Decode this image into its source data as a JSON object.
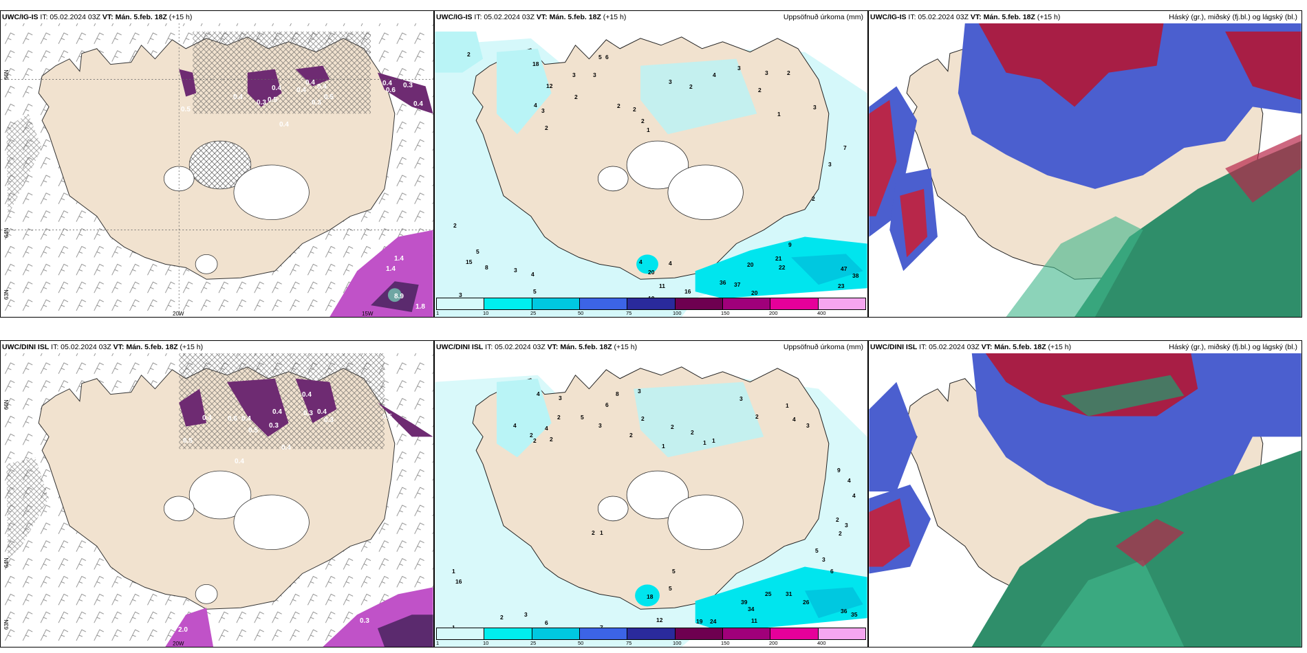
{
  "panels": [
    {
      "id": "igis-wind",
      "source": "UWC/IG-IS",
      "it": "IT: 05.02.2024 03Z",
      "vt_label": "VT:",
      "vt": "Mán. 5.feb. 18Z",
      "lead": "(+15 h)",
      "right_title": "",
      "lat_labels": [
        "66N",
        "64N",
        "63N"
      ],
      "lon_labels": [
        "20W",
        "15W"
      ],
      "values": [
        "0.5",
        "0.4",
        "0.3",
        "0.4",
        "0.5",
        "0.4",
        "0.3",
        "0.4",
        "0.4",
        "0.5",
        "0.4",
        "0.6",
        "0.3",
        "0.4",
        "0.4",
        "1.4",
        "1.4",
        "8.9",
        "1.8"
      ]
    },
    {
      "id": "igis-precip",
      "source": "UWC/IG-IS",
      "it": "IT: 05.02.2024 03Z",
      "vt_label": "VT:",
      "vt": "Mán. 5.feb. 18Z",
      "lead": "(+15 h)",
      "right_title": "Uppsöfnuð úrkoma (mm)",
      "values": [
        "2",
        "5",
        "6",
        "3",
        "4",
        "3",
        "2",
        "3",
        "2",
        "12",
        "18",
        "2",
        "2",
        "2",
        "1",
        "3",
        "2",
        "3",
        "4",
        "3",
        "2",
        "2",
        "1",
        "3",
        "7",
        "3",
        "2",
        "2",
        "5",
        "15",
        "8",
        "3",
        "4",
        "3",
        "5",
        "9",
        "21",
        "22",
        "20",
        "47",
        "38",
        "36",
        "37",
        "23",
        "20",
        "16",
        "20",
        "4",
        "4",
        "11",
        "10"
      ],
      "legend": [
        "1",
        "10",
        "25",
        "50",
        "75",
        "100",
        "150",
        "200",
        "400"
      ]
    },
    {
      "id": "igis-cloud",
      "source": "UWC/IG-IS",
      "it": "IT: 05.02.2024 03Z",
      "vt_label": "VT:",
      "vt": "Mán. 5.feb. 18Z",
      "lead": "(+15 h)",
      "right_title": "Háský (gr.), miðský (fj.bl.) og lágský (bl.)"
    },
    {
      "id": "dini-wind",
      "source": "UWC/DINI ISL",
      "it": "IT: 05.02.2024 03Z",
      "vt_label": "VT:",
      "vt": "Mán. 5.feb. 18Z",
      "lead": "(+15 h)",
      "right_title": "",
      "lat_labels": [
        "66N",
        "64N",
        "63N"
      ],
      "lon_labels": [
        "20W"
      ],
      "values": [
        "0.5",
        "0.4",
        "0.6",
        "0.4",
        "0.3",
        "0.4",
        "0.5",
        "0.4",
        "0.3",
        "0.4",
        "0.3",
        "0.4",
        "0.5",
        "0.4",
        "2.0",
        "0.3"
      ]
    },
    {
      "id": "dini-precip",
      "source": "UWC/DINI ISL",
      "it": "IT: 05.02.2024 03Z",
      "vt_label": "VT:",
      "vt": "Mán. 5.feb. 18Z",
      "lead": "(+15 h)",
      "right_title": "Uppsöfnuð úrkoma (mm)",
      "values": [
        "4",
        "4",
        "2",
        "4",
        "2",
        "2",
        "3",
        "2",
        "5",
        "6",
        "3",
        "8",
        "3",
        "2",
        "2",
        "1",
        "2",
        "1",
        "2",
        "1",
        "3",
        "1",
        "4",
        "2",
        "3",
        "9",
        "4",
        "4",
        "2",
        "3",
        "2",
        "5",
        "3",
        "6",
        "5",
        "2",
        "1",
        "16",
        "1",
        "18",
        "5",
        "12",
        "19",
        "24",
        "39",
        "34",
        "25",
        "31",
        "26",
        "36",
        "35",
        "11",
        "7",
        "6",
        "3",
        "2",
        "1"
      ],
      "legend": [
        "1",
        "10",
        "25",
        "50",
        "75",
        "100",
        "150",
        "200",
        "400"
      ]
    },
    {
      "id": "dini-cloud",
      "source": "UWC/DINI ISL",
      "it": "IT: 05.02.2024 03Z",
      "vt_label": "VT:",
      "vt": "Mán. 5.feb. 18Z",
      "lead": "(+15 h)",
      "right_title": "Háský (gr.), miðský (fj.bl.) og lágský (bl.)"
    }
  ],
  "legend_colors": [
    "#d6fbfb",
    "#00eeee",
    "#00c8e0",
    "#3c64e6",
    "#2a2a9c",
    "#6e0050",
    "#a0007a",
    "#e6009a",
    "#f5a6f0"
  ],
  "colors": {
    "land": "#f1e2cf",
    "precip_light": "#b9f4f6",
    "precip_mid": "#00e5ee",
    "snow_purple": "#c052c8",
    "snow_dark": "#6e2b72",
    "high_cloud": "#b8274a",
    "mid_cloud": "#4b5fcf",
    "low_cloud": "#2f8e6a"
  }
}
